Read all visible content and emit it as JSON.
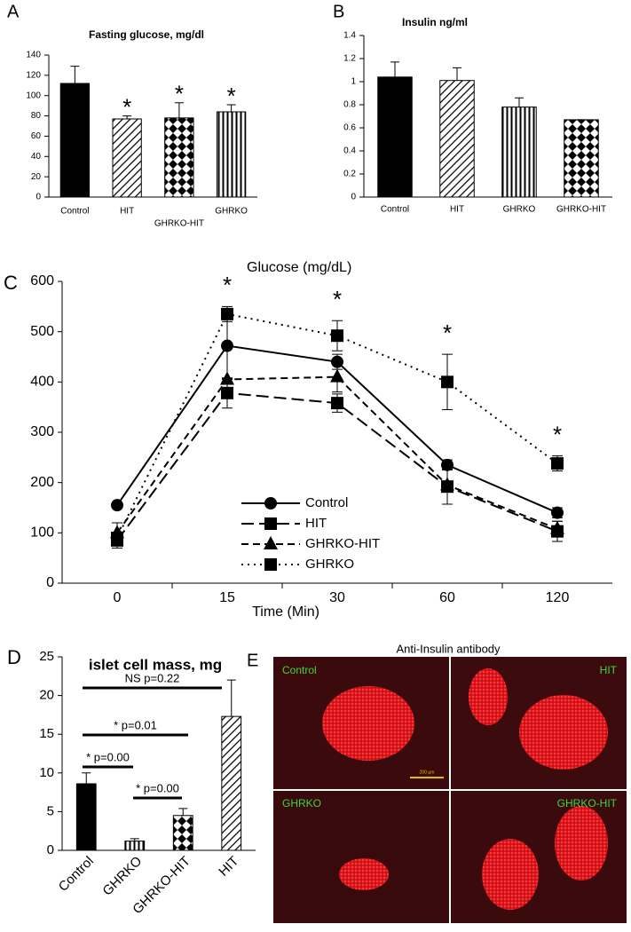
{
  "chart_data": [
    {
      "type": "bar",
      "panel_label": "A",
      "title": "Fasting glucose, mg/dl",
      "categories": [
        "Control",
        "HIT",
        "GHRKO-HIT",
        "GHRKO"
      ],
      "values": [
        112,
        77,
        78,
        84
      ],
      "errors": [
        17,
        3,
        15,
        7
      ],
      "fills": [
        "black",
        "hatch",
        "diamond",
        "stripe"
      ],
      "stars": [
        null,
        "*",
        "*",
        "*"
      ],
      "ylim": [
        0,
        140
      ],
      "yticks": [
        0,
        20,
        40,
        60,
        80,
        100,
        120,
        140
      ]
    },
    {
      "type": "bar",
      "panel_label": "B",
      "title": "Insulin ng/ml",
      "categories": [
        "Control",
        "HIT",
        "GHRKO",
        "GHRKO-HIT"
      ],
      "values": [
        1.04,
        1.01,
        0.78,
        0.67
      ],
      "errors": [
        0.13,
        0.11,
        0.08,
        0
      ],
      "fills": [
        "black",
        "hatch",
        "stripe",
        "diamond"
      ],
      "ylim": [
        0,
        1.4
      ],
      "yticks": [
        0,
        0.2,
        0.4,
        0.6,
        0.8,
        1,
        1.2,
        1.4
      ]
    },
    {
      "type": "line",
      "panel_label": "C",
      "y_label": "Glucose (mg/dL)",
      "x_label": "Time (Min)",
      "categories": [
        "0",
        "15",
        "30",
        "60",
        "120"
      ],
      "series": [
        {
          "name": "Control",
          "color": "#000000",
          "marker": "circle",
          "dash": "solid",
          "values": [
            155,
            472,
            440,
            235,
            140
          ],
          "errors": [
            0,
            65,
            15,
            10,
            10
          ]
        },
        {
          "name": "HIT",
          "color": "#000000",
          "marker": "square",
          "dash": "longdash",
          "values": [
            85,
            378,
            358,
            192,
            103
          ],
          "errors": [
            15,
            30,
            18,
            35,
            20
          ]
        },
        {
          "name": "GHRKO-HIT",
          "color": "#000000",
          "marker": "triangle",
          "dash": "dash",
          "values": [
            100,
            405,
            410,
            195,
            108
          ],
          "errors": [
            20,
            0,
            30,
            0,
            15
          ]
        },
        {
          "name": "GHRKO",
          "color": "#000000",
          "marker": "square",
          "dash": "dot",
          "values": [
            90,
            535,
            492,
            400,
            238
          ],
          "errors": [
            10,
            15,
            30,
            55,
            15
          ]
        }
      ],
      "stars": [
        null,
        "*",
        "*",
        "*",
        "*"
      ],
      "ylim": [
        0,
        600
      ],
      "yticks": [
        0,
        100,
        200,
        300,
        400,
        500,
        600
      ]
    },
    {
      "type": "bar",
      "panel_label": "D",
      "title": "islet cell mass, mg",
      "categories": [
        "Control",
        "GHRKO",
        "GHRKO-HIT",
        "HIT"
      ],
      "values": [
        8.6,
        1.2,
        4.5,
        17.3
      ],
      "errors": [
        1.4,
        0.3,
        0.9,
        4.7
      ],
      "fills": [
        "black",
        "stripe",
        "diamond",
        "hatch"
      ],
      "annotations": [
        "NS p=0.22",
        "* p=0.01",
        "* p=0.00",
        "* p=0.00"
      ],
      "ylim": [
        0,
        25
      ],
      "yticks": [
        0,
        5,
        10,
        15,
        20,
        25
      ]
    }
  ],
  "image_panel": {
    "panel_label": "E",
    "title": "Anti-Insulin antibody",
    "labels": [
      "Control",
      "HIT",
      "GHRKO",
      "GHRKO-HIT"
    ],
    "scale_bar": "200 µm"
  }
}
